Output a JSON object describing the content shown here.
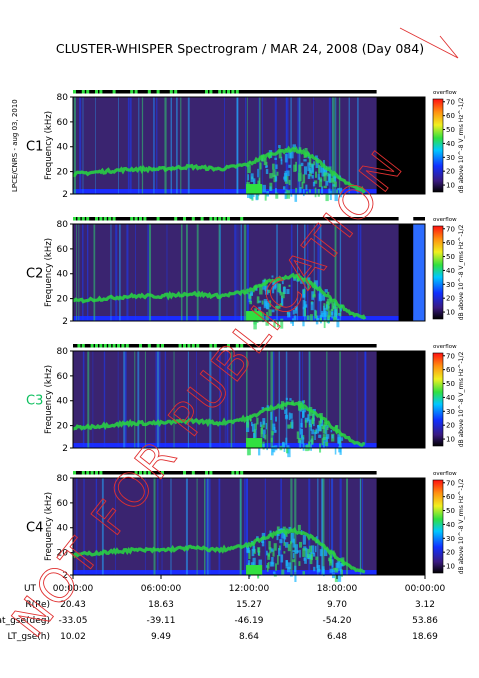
{
  "title": "CLUSTER-WHISPER Spectrogram / MAR 24, 2008 (Day 084)",
  "side_note": "LPCE/CNRS - aug 03, 2010",
  "watermark": "NOT FOR PUBLICATION",
  "colors": {
    "background_spectrum": "#3a2470",
    "low_band": "#1a2cff",
    "emission": "#28d840",
    "no_data": "#000000",
    "watermark": "#e03030",
    "c3_label": "#10c060"
  },
  "chart_data": {
    "type": "heatmap",
    "title": "CLUSTER-WHISPER Spectrogram / MAR 24, 2008 (Day 084)",
    "xlabel": "UT",
    "ylabel": "Frequency (kHz)",
    "x_ticks": [
      "00:00:00",
      "06:00:00",
      "12:00:00",
      "18:00:00",
      "00:00:00"
    ],
    "x_range_hours": [
      0,
      24
    ],
    "y_ticks": [
      2,
      20,
      40,
      60,
      80
    ],
    "ylim": [
      2,
      80
    ],
    "colorbar": {
      "label": "dB above 10^-8 V_rms Hz^-1/2",
      "ticks": [
        10,
        20,
        30,
        40,
        50,
        60,
        70
      ],
      "range": [
        5,
        72
      ],
      "status_label": "overflow"
    },
    "panels": [
      {
        "name": "C1",
        "no_data_from_hour": 20.7,
        "gap_start_hour": 20.7,
        "gap_end_hour": 24.0
      },
      {
        "name": "C2",
        "no_data_from_hour": 22.2,
        "gap_start_hour": 22.2,
        "gap_end_hour": 23.2
      },
      {
        "name": "C3",
        "no_data_from_hour": 20.7,
        "gap_start_hour": 20.7,
        "gap_end_hour": 24.0
      },
      {
        "name": "C4",
        "no_data_from_hour": 20.7,
        "gap_start_hour": 20.7,
        "gap_end_hour": 24.0
      }
    ],
    "emission_line_khz": [
      [
        0,
        18
      ],
      [
        2,
        20
      ],
      [
        4,
        22
      ],
      [
        6,
        22
      ],
      [
        8,
        24
      ],
      [
        10,
        22
      ],
      [
        11,
        24
      ],
      [
        12,
        26
      ],
      [
        13,
        32
      ],
      [
        14,
        36
      ],
      [
        15,
        38
      ],
      [
        16,
        34
      ],
      [
        17,
        26
      ],
      [
        18,
        16
      ],
      [
        19,
        8
      ],
      [
        20,
        4
      ]
    ],
    "ephemeris": {
      "labels": [
        "R(Re)",
        "Lat_gse(deg)",
        "LT_gse(h)"
      ],
      "rows": [
        [
          "20.43",
          "18.63",
          "15.27",
          "9.70",
          "3.12"
        ],
        [
          "-33.05",
          "-39.11",
          "-46.19",
          "-54.20",
          "53.86"
        ],
        [
          "10.02",
          "9.49",
          "8.64",
          "6.48",
          "18.69"
        ]
      ]
    }
  }
}
